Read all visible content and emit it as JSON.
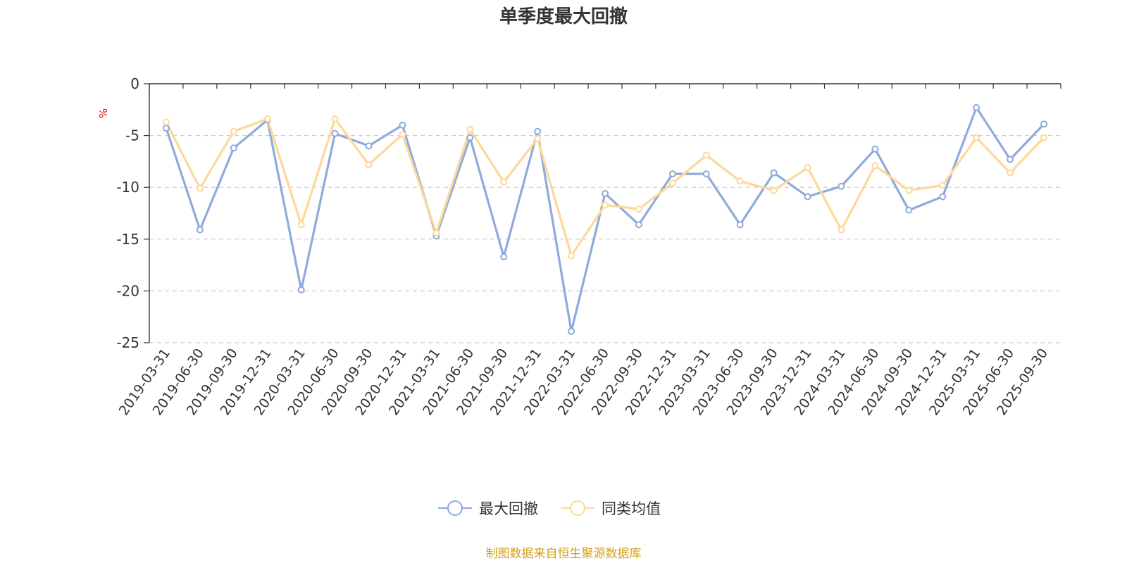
{
  "chart_data": {
    "type": "line",
    "title": "单季度最大回撤",
    "ylabel": "%",
    "xlabel": "",
    "ylim": [
      -25,
      0
    ],
    "yticks": [
      0,
      -5,
      -10,
      -15,
      -20,
      -25
    ],
    "grid": true,
    "legend_position": "bottom-center",
    "categories": [
      "2019-03-31",
      "2019-06-30",
      "2019-09-30",
      "2019-12-31",
      "2020-03-31",
      "2020-06-30",
      "2020-09-30",
      "2020-12-31",
      "2021-03-31",
      "2021-06-30",
      "2021-09-30",
      "2021-12-31",
      "2022-03-31",
      "2022-06-30",
      "2022-09-30",
      "2022-12-31",
      "2023-03-31",
      "2023-06-30",
      "2023-09-30",
      "2023-12-31",
      "2024-03-31",
      "2024-06-30",
      "2024-09-30",
      "2024-12-31",
      "2025-03-31",
      "2025-06-30",
      "2025-09-30"
    ],
    "series": [
      {
        "name": "最大回撤",
        "color": "#8faadc",
        "values": [
          -4.3,
          -14.1,
          -6.2,
          -3.5,
          -19.9,
          -4.8,
          -6.0,
          -4.0,
          -14.7,
          -5.2,
          -16.7,
          -4.6,
          -23.9,
          -10.6,
          -13.6,
          -8.7,
          -8.7,
          -13.6,
          -8.6,
          -10.9,
          -9.9,
          -6.3,
          -12.2,
          -10.9,
          -2.3,
          -7.3,
          -3.9
        ]
      },
      {
        "name": "同类均值",
        "color": "#fdd89a",
        "values": [
          -3.7,
          -10.1,
          -4.6,
          -3.4,
          -13.6,
          -3.4,
          -7.8,
          -4.9,
          -14.4,
          -4.4,
          -9.5,
          -5.3,
          -16.6,
          -11.7,
          -12.1,
          -9.6,
          -6.9,
          -9.4,
          -10.3,
          -8.1,
          -14.1,
          -7.9,
          -10.3,
          -9.8,
          -5.2,
          -8.6,
          -5.2
        ]
      }
    ]
  },
  "footer": {
    "source": "制图数据来自恒生聚源数据库"
  }
}
